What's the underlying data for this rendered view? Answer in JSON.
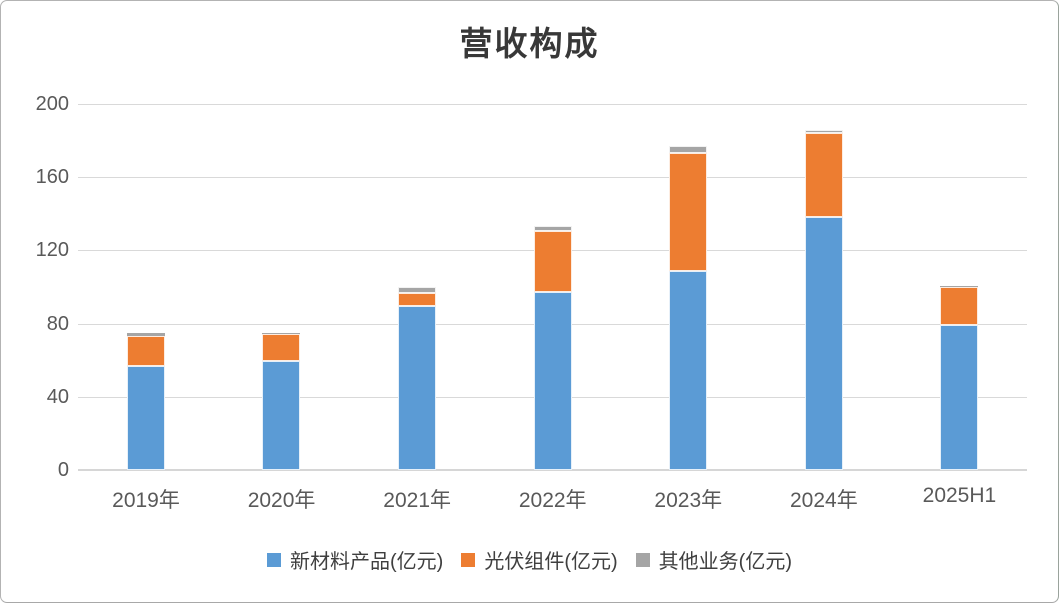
{
  "chart_data": {
    "type": "bar",
    "stacked": true,
    "title": "营收构成",
    "categories": [
      "2019年",
      "2020年",
      "2021年",
      "2022年",
      "2023年",
      "2024年",
      "2025H1"
    ],
    "series": [
      {
        "name": "新材料产品(亿元)",
        "slug": "new-materials",
        "color": "#5B9BD5",
        "values": [
          57,
          59.5,
          89.5,
          97.5,
          108.5,
          138.5,
          79
        ]
      },
      {
        "name": "光伏组件(亿元)",
        "slug": "pv-modules",
        "color": "#ED7D31",
        "values": [
          16.5,
          15,
          7.5,
          33,
          64.5,
          45.5,
          21
        ]
      },
      {
        "name": "其他业务(亿元)",
        "slug": "other-business",
        "color": "#A5A5A5",
        "values": [
          1.5,
          0.4,
          2.8,
          3,
          4,
          2,
          0.4
        ]
      }
    ],
    "ylim": [
      0,
      200
    ],
    "yticks": [
      0,
      40,
      80,
      120,
      160,
      200
    ],
    "grid": true,
    "legend_position": "bottom",
    "colors": {
      "grid": "#D9D9D9",
      "axis_text": "#595959",
      "title_text": "#383838",
      "background": "#FFFFFF",
      "frame_border": "#B3B3B3"
    }
  }
}
